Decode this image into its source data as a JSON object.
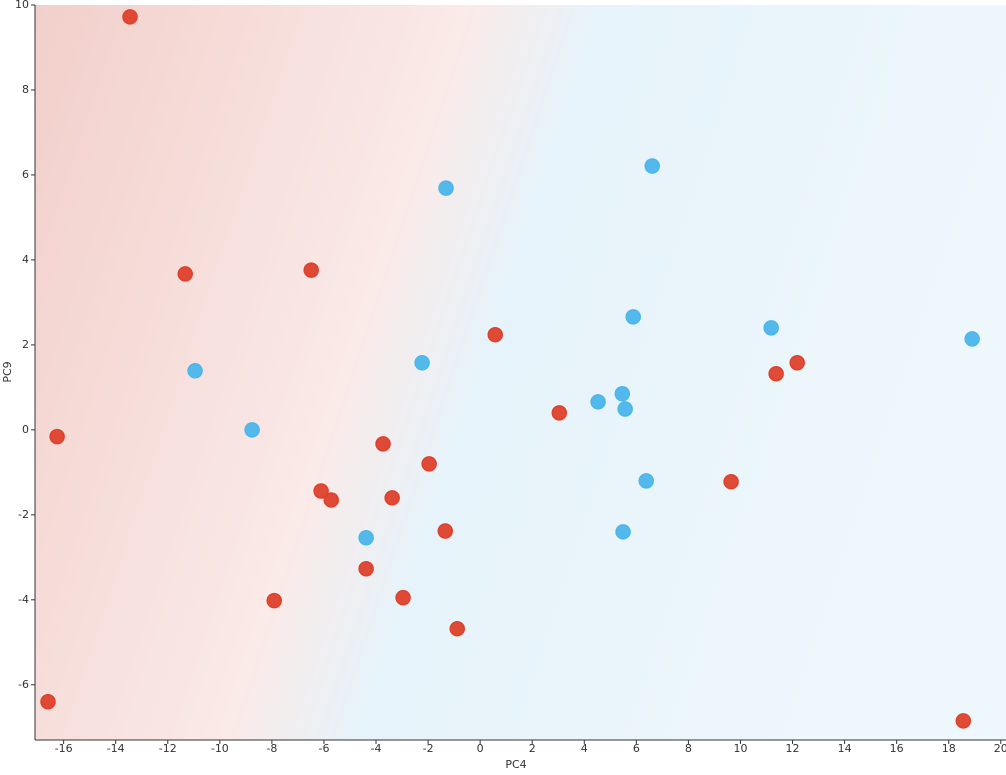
{
  "chart_data": {
    "type": "scatter",
    "x_label": "PC4",
    "y_label": "PC9",
    "xlim": [
      -17.1,
      20.2
    ],
    "ylim": [
      -7.3,
      10
    ],
    "xticks": [
      -16,
      -14,
      -12,
      -10,
      -8,
      -6,
      -4,
      -2,
      0,
      2,
      4,
      6,
      8,
      10,
      12,
      14,
      16,
      18,
      20
    ],
    "yticks": [
      -6,
      -4,
      -2,
      0,
      2,
      4,
      6,
      8,
      10
    ],
    "series": [
      {
        "color": "#e5432d",
        "x": [
          -13.45,
          -11.33,
          -6.49,
          0.58,
          -16.25,
          3.04,
          -3.73,
          -1.96,
          -6.11,
          -5.72,
          -3.38,
          -1.34,
          -4.38,
          -2.96,
          -7.91,
          -0.88,
          -16.6,
          9.64,
          11.37,
          12.18,
          18.56
        ],
        "values": [
          9.72,
          3.67,
          3.76,
          2.24,
          -0.16,
          0.4,
          -0.33,
          -0.8,
          -1.44,
          -1.65,
          -1.6,
          -2.38,
          -3.27,
          -3.95,
          -4.02,
          -4.68,
          -6.4,
          -1.22,
          1.32,
          1.58,
          -6.85
        ]
      },
      {
        "color": "#4dbcf2",
        "x": [
          -1.31,
          6.61,
          -10.95,
          -8.76,
          -2.23,
          5.88,
          11.18,
          18.9,
          5.46,
          4.53,
          5.57,
          6.38,
          5.49,
          -4.38
        ],
        "values": [
          5.69,
          6.21,
          1.39,
          0.0,
          1.58,
          2.66,
          2.4,
          2.14,
          0.85,
          0.66,
          0.49,
          -1.2,
          -2.4,
          -2.54
        ]
      }
    ]
  }
}
